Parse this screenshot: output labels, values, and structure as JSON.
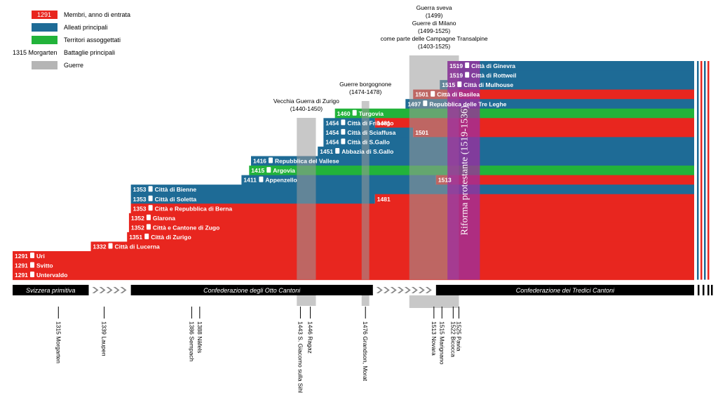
{
  "chart_data": {
    "type": "timeline",
    "title": "",
    "legend": {
      "placement": "top-left",
      "items": [
        {
          "key": "member",
          "swatch_text": "1291",
          "label": "Membri, anno di entrata",
          "color": "#e8261f"
        },
        {
          "key": "ally",
          "swatch_text": "",
          "label": "Alleati principali",
          "color": "#1e6b96"
        },
        {
          "key": "subject",
          "swatch_text": "",
          "label": "Territori assoggettati",
          "color": "#22b33a"
        },
        {
          "key": "battle",
          "swatch_text": "1315 Morgarten",
          "label": "Battaglie principali",
          "color": "#000000"
        },
        {
          "key": "war",
          "swatch_text": "",
          "label": "Guerre",
          "color": "#b5b5b5"
        }
      ]
    },
    "x_range": [
      1291,
      1540
    ],
    "colors": {
      "member": "#e8261f",
      "ally": "#1e6b96",
      "subject": "#22b33a",
      "war": "#b5b5b5",
      "reform": "#9d2f9e"
    },
    "rows": [
      {
        "year": 1519,
        "label": "Città di Ginevra",
        "segments": [
          {
            "start": 1519,
            "type": "ally"
          }
        ]
      },
      {
        "year": 1519,
        "label": "Città di Rottweil",
        "segments": [
          {
            "start": 1519,
            "type": "ally"
          }
        ]
      },
      {
        "year": 1515,
        "label": "Città di Mulhouse",
        "segments": [
          {
            "start": 1515,
            "type": "ally"
          }
        ]
      },
      {
        "year": 1501,
        "label": "Città di Basilea",
        "segments": [
          {
            "start": 1501,
            "type": "member"
          }
        ]
      },
      {
        "year": 1497,
        "label": "Repubblica delle Tre Leghe",
        "segments": [
          {
            "start": 1497,
            "type": "ally"
          }
        ]
      },
      {
        "year": 1460,
        "label": "Turgovia",
        "segments": [
          {
            "start": 1460,
            "type": "subject"
          }
        ]
      },
      {
        "year": 1454,
        "label": "Città di Friborgo",
        "change_label": "1481",
        "segments": [
          {
            "start": 1454,
            "type": "ally"
          },
          {
            "start": 1481,
            "type": "member"
          }
        ]
      },
      {
        "year": 1454,
        "label": "Città di Sciaffusa",
        "change_label": "1501",
        "segments": [
          {
            "start": 1454,
            "type": "ally"
          },
          {
            "start": 1501,
            "type": "member"
          }
        ]
      },
      {
        "year": 1454,
        "label": "Città di S.Gallo",
        "segments": [
          {
            "start": 1454,
            "type": "ally"
          }
        ]
      },
      {
        "year": 1451,
        "label": "Abbazia di S.Gallo",
        "segments": [
          {
            "start": 1451,
            "type": "ally"
          }
        ]
      },
      {
        "year": 1416,
        "label": "Repubblica del Vallese",
        "segments": [
          {
            "start": 1416,
            "type": "ally"
          }
        ]
      },
      {
        "year": 1415,
        "label": "Argovia",
        "segments": [
          {
            "start": 1415,
            "type": "subject"
          }
        ]
      },
      {
        "year": 1411,
        "label": "Appenzello",
        "change_label": "1513",
        "segments": [
          {
            "start": 1411,
            "type": "ally"
          },
          {
            "start": 1513,
            "type": "member"
          }
        ]
      },
      {
        "year": 1353,
        "label": "Città di Bienne",
        "segments": [
          {
            "start": 1353,
            "type": "ally"
          }
        ]
      },
      {
        "year": 1353,
        "label": "Città di Soletta",
        "change_label": "1481",
        "segments": [
          {
            "start": 1353,
            "type": "ally"
          },
          {
            "start": 1481,
            "type": "member"
          }
        ]
      },
      {
        "year": 1353,
        "label": "Città e Repubblica di Berna",
        "segments": [
          {
            "start": 1353,
            "type": "member"
          }
        ]
      },
      {
        "year": 1352,
        "label": "Glarona",
        "segments": [
          {
            "start": 1352,
            "type": "member"
          }
        ]
      },
      {
        "year": 1352,
        "label": "Città e Cantone di Zugo",
        "segments": [
          {
            "start": 1352,
            "type": "member"
          }
        ]
      },
      {
        "year": 1351,
        "label": "Città di Zurigo",
        "segments": [
          {
            "start": 1351,
            "type": "member"
          }
        ]
      },
      {
        "year": 1332,
        "label": "Città di Lucerna",
        "segments": [
          {
            "start": 1332,
            "type": "member"
          }
        ]
      },
      {
        "year": 1291,
        "label": "Uri",
        "segments": [
          {
            "start": 1291,
            "type": "member"
          }
        ]
      },
      {
        "year": 1291,
        "label": "Svitto",
        "segments": [
          {
            "start": 1291,
            "type": "member"
          }
        ]
      },
      {
        "year": 1291,
        "label": "Untervaldo",
        "segments": [
          {
            "start": 1291,
            "type": "member"
          }
        ]
      }
    ],
    "wars": [
      {
        "label_lines": [
          "Vecchia Guerra di Zurigo",
          "(1440-1450)"
        ],
        "start": 1440,
        "end": 1450
      },
      {
        "label_lines": [
          "Guerre borgognone",
          "(1474-1478)"
        ],
        "start": 1474,
        "end": 1478
      },
      {
        "label_lines": [
          "Guerra sveva",
          "(1499)",
          "Guerre di Milano",
          "(1499-1525)",
          "come parte delle Campagne Transalpine",
          "(1403-1525)"
        ],
        "start": 1499,
        "end": 1525
      }
    ],
    "reformation": {
      "label": "Riforma protestante (1519-1536)",
      "start": 1519,
      "end": 1536
    },
    "eras": [
      {
        "label": "Svizzera primitiva",
        "start": 1291,
        "end": 1332
      },
      {
        "label": "Confederazione degli Otto Cantoni",
        "start": 1353,
        "end": 1481
      },
      {
        "label": "Confederazione dei Tredici Cantoni",
        "start": 1513,
        "end": 1540
      }
    ],
    "battles": [
      {
        "year": 1315,
        "label": "1315 Morgarten"
      },
      {
        "year": 1339,
        "label": "1339 Laupen"
      },
      {
        "year": 1386,
        "label": "1386 Sempach"
      },
      {
        "year": 1388,
        "label": "1388 Näfels"
      },
      {
        "year": 1443,
        "label": "1443 S. Giacomo sulla Sihl"
      },
      {
        "year": 1446,
        "label": "1446 Ragaz"
      },
      {
        "year": 1476,
        "label": "1476 Grandson, Morat"
      },
      {
        "year": 1513,
        "label": "1513 Novara"
      },
      {
        "year": 1515,
        "label": "1515 Marignano"
      },
      {
        "year": 1522,
        "label": "1522 Bicocca"
      },
      {
        "year": 1525,
        "label": "1525 Pavia"
      }
    ]
  }
}
